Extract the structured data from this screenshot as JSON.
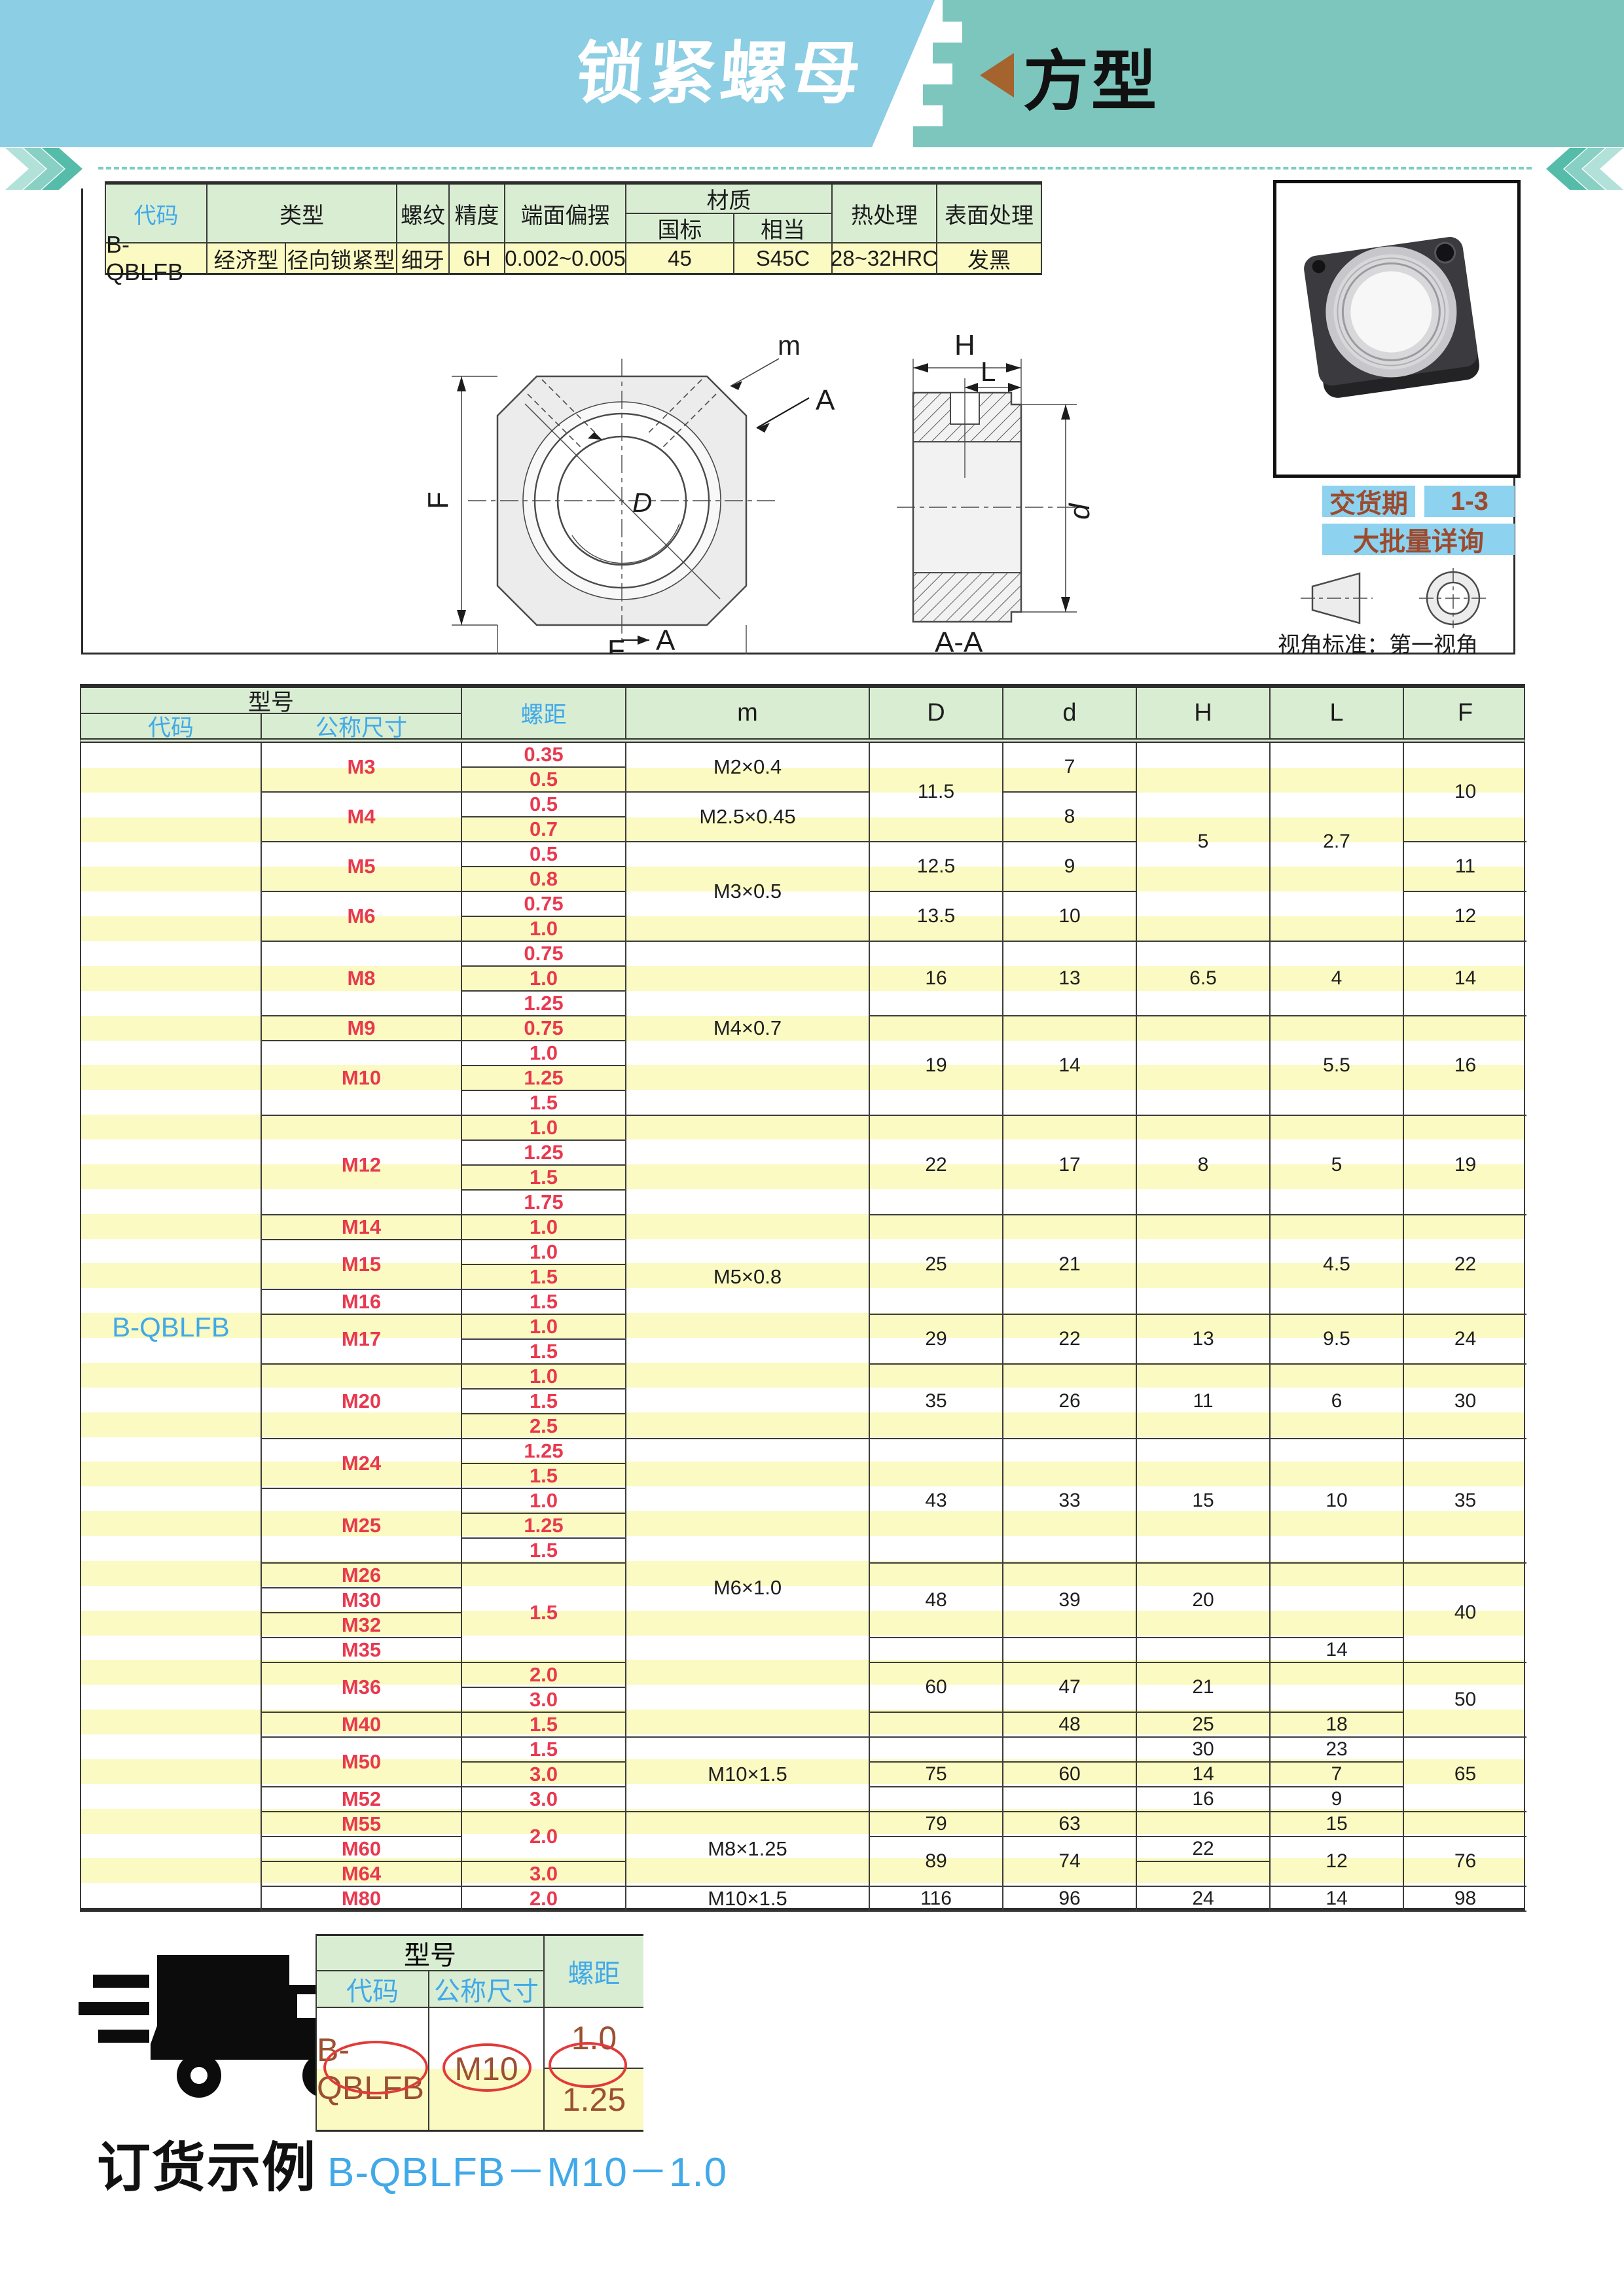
{
  "header": {
    "title": "锁紧螺母",
    "category": "方型"
  },
  "spec_table": {
    "headers": {
      "code": "代码",
      "type": "类型",
      "thread": "螺纹",
      "precision": "精度",
      "runout": "端面偏摆",
      "material": "材质",
      "material_gb": "国标",
      "material_eq": "相当",
      "heat": "热处理",
      "surface": "表面处理"
    },
    "row": {
      "code": "B-QBLFB",
      "type1": "经济型",
      "type2": "径向锁紧型",
      "thread": "细牙",
      "precision": "6H",
      "runout": "0.002~0.005",
      "material_gb": "45",
      "material_eq": "S45C",
      "heat": "28~32HRC",
      "surface": "发黑"
    }
  },
  "drawing": {
    "labels": {
      "m": "m",
      "A": "A",
      "D": "D",
      "F": "F",
      "H": "H",
      "L": "L",
      "d": "d",
      "section": "A-A"
    },
    "view_note": "视角标准：第一视角"
  },
  "delivery": {
    "label": "交货期",
    "value": "1-3",
    "bulk": "大批量详询"
  },
  "main_table": {
    "headers": {
      "model": "型号",
      "code": "代码",
      "size": "公称尺寸",
      "pitch": "螺距",
      "m": "m",
      "D": "D",
      "d": "d",
      "H": "H",
      "L": "L",
      "F": "F"
    },
    "code": "B-QBLFB",
    "rows": [
      {
        "s": [
          "M3",
          2
        ],
        "p": [
          "0.35",
          1
        ],
        "m": [
          "M2×0.4",
          2
        ],
        "D": [
          "11.5",
          4
        ],
        "d": [
          "7",
          2
        ],
        "H": [
          "5",
          8
        ],
        "L": [
          "2.7",
          8
        ],
        "F": [
          "10",
          4
        ]
      },
      {
        "p": [
          "0.5",
          1
        ]
      },
      {
        "s": [
          "M4",
          2
        ],
        "p": [
          "0.5",
          1
        ],
        "m": [
          "M2.5×0.45",
          2
        ],
        "d": [
          "8",
          2
        ]
      },
      {
        "p": [
          "0.7",
          1
        ]
      },
      {
        "s": [
          "M5",
          2
        ],
        "p": [
          "0.5",
          1
        ],
        "m": [
          "M3×0.5",
          4
        ],
        "D": [
          "12.5",
          2
        ],
        "d": [
          "9",
          2
        ],
        "F": [
          "11",
          2
        ]
      },
      {
        "p": [
          "0.8",
          1
        ]
      },
      {
        "s": [
          "M6",
          2
        ],
        "p": [
          "0.75",
          1
        ],
        "D": [
          "13.5",
          2
        ],
        "d": [
          "10",
          2
        ],
        "F": [
          "12",
          2
        ]
      },
      {
        "p": [
          "1.0",
          1
        ]
      },
      {
        "s": [
          "M8",
          3
        ],
        "p": [
          "0.75",
          1
        ],
        "m": [
          "M4×0.7",
          7
        ],
        "D": [
          "16",
          3
        ],
        "d": [
          "13",
          3
        ],
        "H": [
          "6.5",
          3
        ],
        "L": [
          "4",
          3
        ],
        "F": [
          "14",
          3
        ]
      },
      {
        "p": [
          "1.0",
          1
        ]
      },
      {
        "p": [
          "1.25",
          1
        ]
      },
      {
        "s": [
          "M9",
          1
        ],
        "p": [
          "0.75",
          1
        ],
        "D": [
          "19",
          4
        ],
        "d": [
          "14",
          4
        ],
        "H": [
          "",
          4
        ],
        "L": [
          "5.5",
          4
        ],
        "F": [
          "16",
          4
        ]
      },
      {
        "s": [
          "M10",
          3
        ],
        "p": [
          "1.0",
          1
        ]
      },
      {
        "p": [
          "1.25",
          1
        ]
      },
      {
        "p": [
          "1.5",
          1
        ]
      },
      {
        "s": [
          "M12",
          4
        ],
        "p": [
          "1.0",
          1
        ],
        "m": [
          "M5×0.8",
          13
        ],
        "D": [
          "22",
          4
        ],
        "d": [
          "17",
          4
        ],
        "H": [
          "8",
          4
        ],
        "L": [
          "5",
          4
        ],
        "F": [
          "19",
          4
        ]
      },
      {
        "p": [
          "1.25",
          1
        ]
      },
      {
        "p": [
          "1.5",
          1
        ]
      },
      {
        "p": [
          "1.75",
          1
        ]
      },
      {
        "s": [
          "M14",
          1
        ],
        "p": [
          "1.0",
          1
        ],
        "D": [
          "25",
          4
        ],
        "d": [
          "21",
          4
        ],
        "H": [
          "",
          4
        ],
        "L": [
          "4.5",
          4
        ],
        "F": [
          "22",
          4
        ]
      },
      {
        "s": [
          "M15",
          2
        ],
        "p": [
          "1.0",
          1
        ]
      },
      {
        "p": [
          "1.5",
          1
        ]
      },
      {
        "s": [
          "M16",
          1
        ],
        "p": [
          "1.5",
          1
        ]
      },
      {
        "s": [
          "M17",
          2
        ],
        "p": [
          "1.0",
          1
        ],
        "D": [
          "29",
          2
        ],
        "d": [
          "22",
          2
        ],
        "H": [
          "13",
          2
        ],
        "L": [
          "9.5",
          2
        ],
        "F": [
          "24",
          2
        ]
      },
      {
        "p": [
          "1.5",
          1
        ]
      },
      {
        "s": [
          "M20",
          3
        ],
        "p": [
          "1.0",
          1
        ],
        "D": [
          "35",
          3
        ],
        "d": [
          "26",
          3
        ],
        "H": [
          "11",
          3
        ],
        "L": [
          "6",
          3
        ],
        "F": [
          "30",
          3
        ]
      },
      {
        "p": [
          "1.5",
          1
        ]
      },
      {
        "p": [
          "2.5",
          1
        ]
      },
      {
        "s": [
          "M24",
          2
        ],
        "p": [
          "1.25",
          1
        ],
        "m": [
          "M6×1.0",
          12
        ],
        "D": [
          "43",
          5
        ],
        "d": [
          "33",
          5
        ],
        "H": [
          "15",
          5
        ],
        "L": [
          "10",
          5
        ],
        "F": [
          "35",
          5
        ]
      },
      {
        "p": [
          "1.5",
          1
        ]
      },
      {
        "s": [
          "M25",
          3
        ],
        "p": [
          "1.0",
          1
        ]
      },
      {
        "p": [
          "1.25",
          1
        ]
      },
      {
        "p": [
          "1.5",
          1
        ]
      },
      {
        "s": [
          "M26",
          1
        ],
        "p": [
          "1.5",
          4
        ],
        "D": [
          "48",
          3
        ],
        "d": [
          "39",
          3
        ],
        "H": [
          "20",
          3
        ],
        "L": [
          "",
          3
        ],
        "F": [
          "40",
          4
        ]
      },
      {
        "s": [
          "M30",
          1
        ]
      },
      {
        "s": [
          "M32",
          1
        ]
      },
      {
        "s": [
          "M35",
          1
        ],
        "D": [
          "",
          1
        ],
        "d": [
          "",
          1
        ],
        "H": [
          "",
          1
        ],
        "L": [
          "14",
          1
        ]
      },
      {
        "s": [
          "M36",
          2
        ],
        "p": [
          "2.0",
          1
        ],
        "D": [
          "60",
          2
        ],
        "d": [
          "47",
          2
        ],
        "H": [
          "21",
          2
        ],
        "L": [
          "",
          2
        ],
        "F": [
          "50",
          3
        ]
      },
      {
        "p": [
          "3.0",
          1
        ]
      },
      {
        "s": [
          "M40",
          1
        ],
        "p": [
          "1.5",
          1
        ],
        "D": [
          "",
          1
        ],
        "d": [
          "48",
          1
        ],
        "H": [
          "25",
          1
        ],
        "L": [
          "18",
          1
        ]
      },
      {
        "s": [
          "M50",
          2
        ],
        "p": [
          "1.5",
          1
        ],
        "m": [
          "M10×1.5",
          3
        ],
        "D": [
          "",
          1
        ],
        "d": [
          "",
          1
        ],
        "H": [
          "30",
          1
        ],
        "L": [
          "23",
          1
        ],
        "F": [
          "65",
          3
        ]
      },
      {
        "p": [
          "3.0",
          1
        ],
        "D": [
          "75",
          1
        ],
        "d": [
          "60",
          1
        ],
        "H": [
          "14",
          1
        ],
        "L": [
          "7",
          1
        ]
      },
      {
        "s": [
          "M52",
          1
        ],
        "p": [
          "3.0",
          1
        ],
        "D": [
          "",
          1
        ],
        "d": [
          "",
          1
        ],
        "H": [
          "16",
          1
        ],
        "L": [
          "9",
          1
        ]
      },
      {
        "s": [
          "M55",
          1
        ],
        "p": [
          "2.0",
          2
        ],
        "m": [
          "M8×1.25",
          3
        ],
        "D": [
          "79",
          1
        ],
        "d": [
          "63",
          1
        ],
        "H": [
          "",
          1
        ],
        "L": [
          "15",
          1
        ],
        "F": [
          "",
          1
        ]
      },
      {
        "s": [
          "M60",
          1
        ],
        "D": [
          "89",
          2
        ],
        "d": [
          "74",
          2
        ],
        "H": [
          "22",
          1
        ],
        "L": [
          "12",
          2
        ],
        "F": [
          "76",
          2
        ]
      },
      {
        "s": [
          "M64",
          1
        ],
        "p": [
          "3.0",
          1
        ],
        "H": [
          "",
          1
        ]
      },
      {
        "s": [
          "M80",
          1
        ],
        "p": [
          "2.0",
          1
        ],
        "m": [
          "M10×1.5",
          1
        ],
        "D": [
          "116",
          1
        ],
        "d": [
          "96",
          1
        ],
        "H": [
          "24",
          1
        ],
        "L": [
          "14",
          1
        ],
        "F": [
          "98",
          1
        ]
      }
    ]
  },
  "order": {
    "caption": "订货示例",
    "example": "B-QBLFB－M10－1.0",
    "table": {
      "model": "型号",
      "code": "代码",
      "size": "公称尺寸",
      "pitch": "螺距",
      "row": {
        "code": "B-QBLFB",
        "size": "M10",
        "pitch1": "1.0",
        "pitch2": "1.25"
      }
    }
  },
  "colors": {
    "banner_blue": "#8CCEE4",
    "banner_teal": "#7CC6BD",
    "header_green": "#D9EDD3",
    "row_yellow": "#FAFAC2",
    "accent_red": "#E8394F",
    "accent_blue": "#41A9E8",
    "brown": "#9C5030",
    "tag_blue": "#8DD2EF"
  }
}
